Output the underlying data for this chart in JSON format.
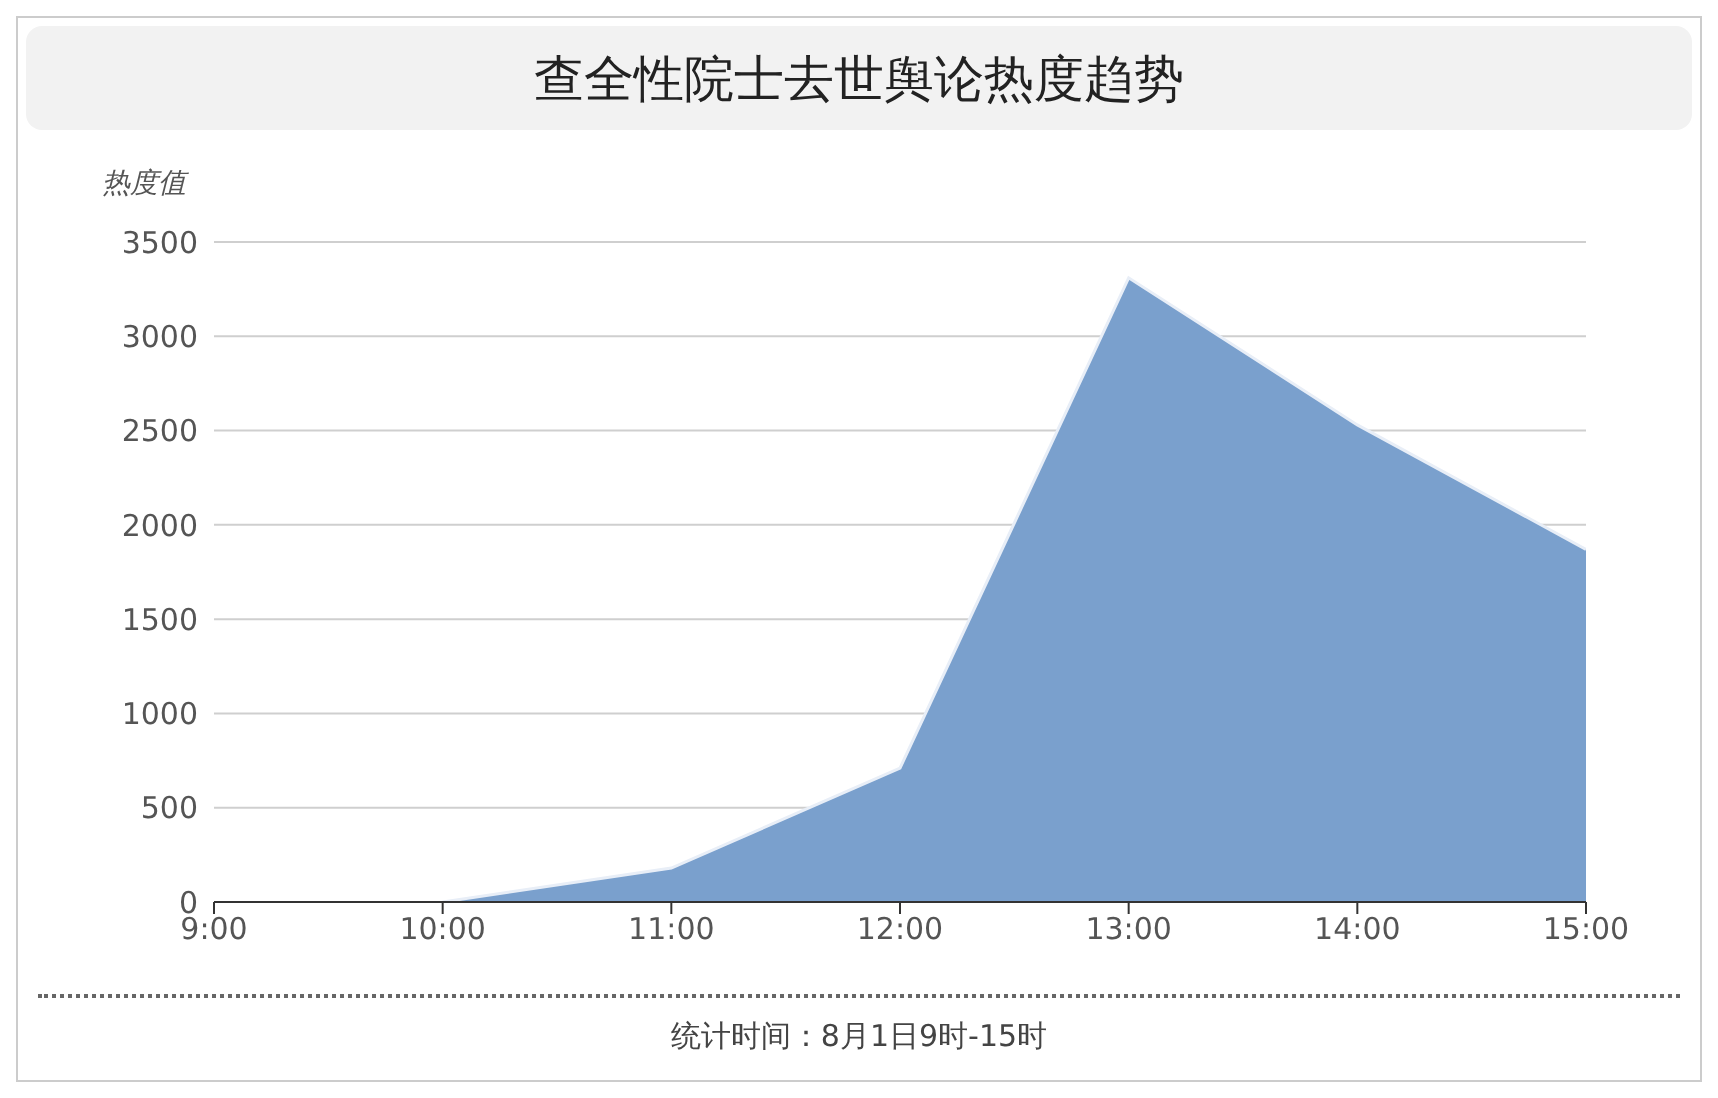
{
  "chart_data": {
    "type": "area",
    "title": "查全性院士去世舆论热度趋势",
    "ylabel": "热度值",
    "x": [
      10,
      11,
      12,
      13,
      14,
      15
    ],
    "series": [
      {
        "color": "#7aa0cd",
        "values": [
          0,
          180,
          710,
          3310,
          2530,
          1870
        ]
      }
    ],
    "xlim": [
      9,
      15
    ],
    "xticks": [
      {
        "value": 9,
        "label": "9:00"
      },
      {
        "value": 10,
        "label": "10:00"
      },
      {
        "value": 11,
        "label": "11:00"
      },
      {
        "value": 12,
        "label": "12:00"
      },
      {
        "value": 13,
        "label": "13:00"
      },
      {
        "value": 14,
        "label": "14:00"
      },
      {
        "value": 15,
        "label": "15:00"
      }
    ],
    "ylim": [
      0,
      3500
    ],
    "yticks": [
      0,
      500,
      1000,
      1500,
      2000,
      2500,
      3000,
      3500
    ],
    "grid": "y",
    "legend": false,
    "annotations": [
      "统计时间：8月1日9时-15时"
    ]
  }
}
